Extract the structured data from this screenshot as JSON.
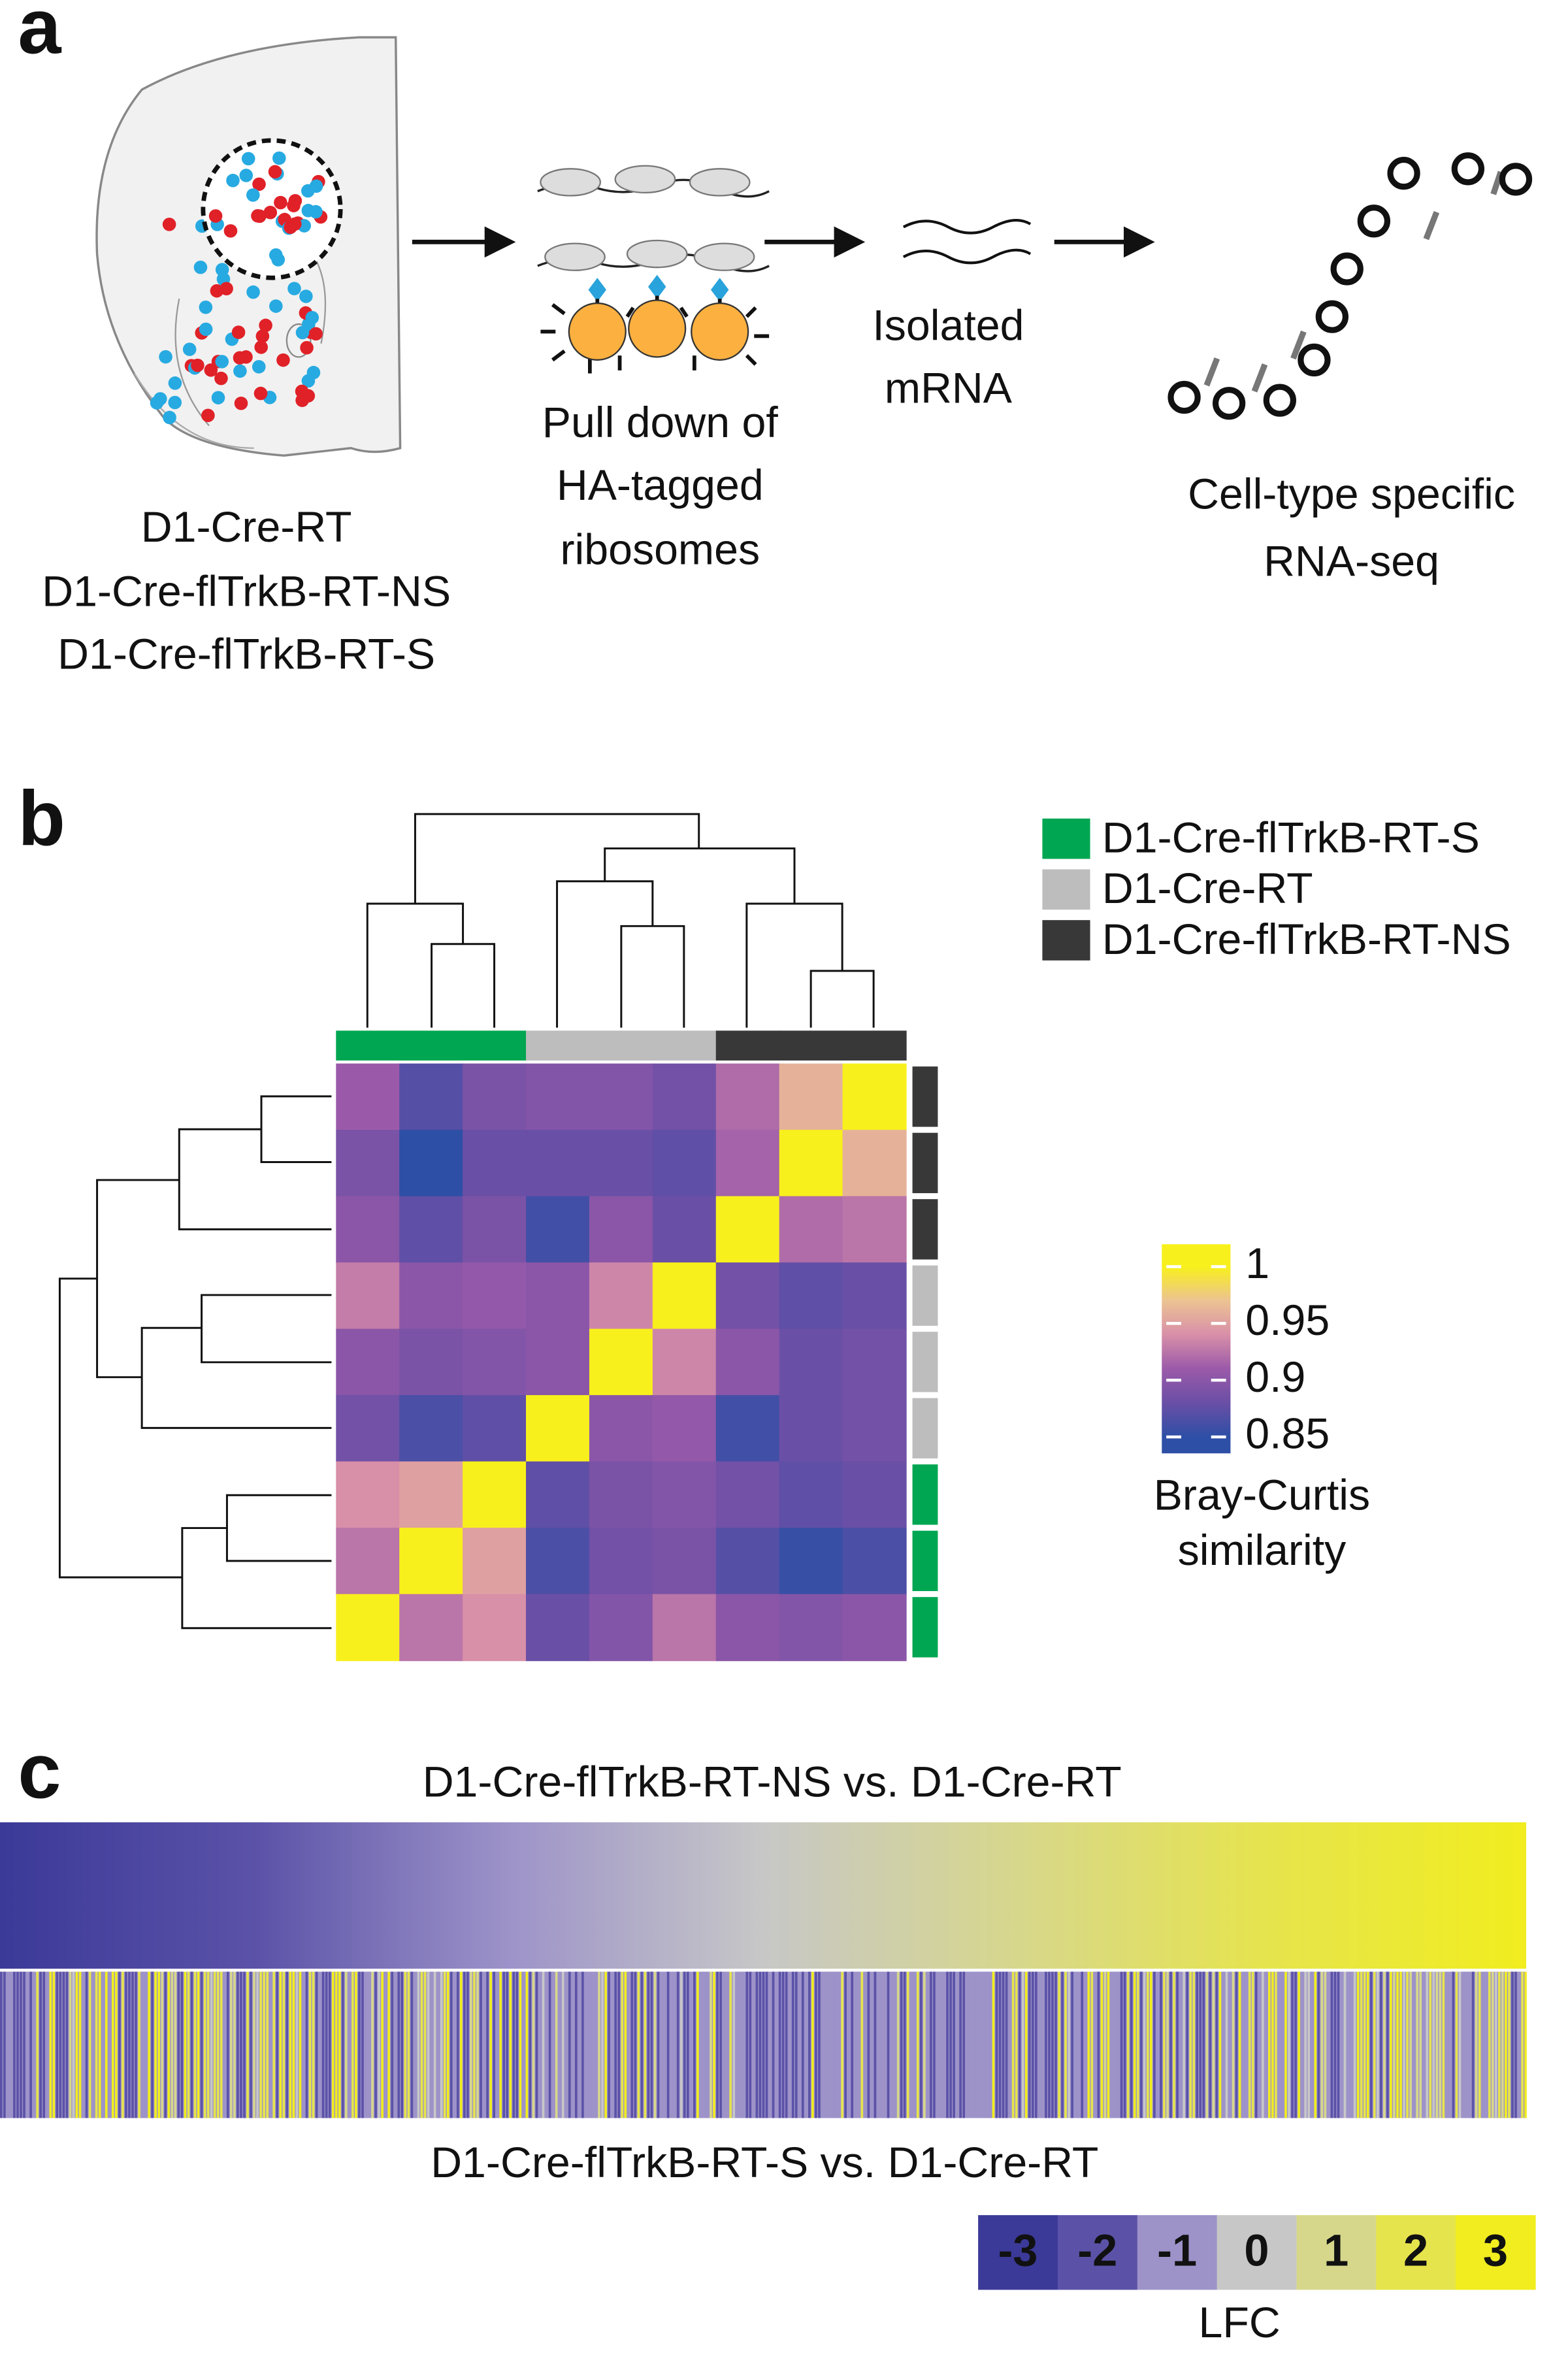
{
  "panel_labels": [
    "a",
    "b",
    "c"
  ],
  "panel_a": {
    "mouse_lines": [
      "D1-Cre-RT",
      "D1-Cre-flTrkB-RT-NS",
      "D1-Cre-flTrkB-RT-S"
    ],
    "steps": [
      [
        "Pull down of",
        "HA-tagged",
        "ribosomes"
      ],
      [
        "Isolated",
        "mRNA"
      ],
      [
        "Cell-type specific",
        "RNA-seq"
      ]
    ]
  },
  "panel_b": {
    "groups": [
      {
        "name": "D1-Cre-flTrkB-RT-S",
        "color": "#00a651"
      },
      {
        "name": "D1-Cre-RT",
        "color": "#bdbdbd"
      },
      {
        "name": "D1-Cre-flTrkB-RT-NS",
        "color": "#383838"
      }
    ],
    "col_groups": [
      0,
      0,
      0,
      1,
      1,
      1,
      2,
      2,
      2
    ],
    "row_groups": [
      2,
      2,
      2,
      1,
      1,
      1,
      0,
      0,
      0
    ],
    "matrix": [
      [
        0.91,
        0.87,
        0.89,
        0.895,
        0.895,
        0.885,
        0.92,
        0.96,
        1
      ],
      [
        0.89,
        0.85,
        0.88,
        0.88,
        0.88,
        0.875,
        0.915,
        1,
        0.96
      ],
      [
        0.9,
        0.875,
        0.89,
        0.86,
        0.9,
        0.88,
        1,
        0.92,
        0.925
      ],
      [
        0.93,
        0.9,
        0.905,
        0.9,
        0.935,
        1,
        0.885,
        0.875,
        0.88
      ],
      [
        0.9,
        0.89,
        0.895,
        0.9,
        1,
        0.935,
        0.9,
        0.88,
        0.885
      ],
      [
        0.885,
        0.865,
        0.875,
        1,
        0.9,
        0.905,
        0.86,
        0.88,
        0.885
      ],
      [
        0.94,
        0.95,
        1,
        0.875,
        0.89,
        0.895,
        0.885,
        0.875,
        0.88
      ],
      [
        0.925,
        1,
        0.95,
        0.865,
        0.885,
        0.89,
        0.87,
        0.855,
        0.865
      ],
      [
        1,
        0.925,
        0.94,
        0.88,
        0.895,
        0.925,
        0.9,
        0.895,
        0.9
      ]
    ],
    "colorbar": {
      "clim": [
        0.85,
        1
      ],
      "ticks": [
        1,
        0.95,
        0.9,
        0.85
      ],
      "colors": [
        "#2e4fa6",
        "#6a4fa6",
        "#9b5aa9",
        "#d88fa8",
        "#ecc392",
        "#f8f01c"
      ],
      "label": [
        "Bray-Curtis",
        "similarity"
      ]
    }
  },
  "panel_c": {
    "top_label": "D1-Cre-flTrkB-RT-NS vs. D1-Cre-RT",
    "bottom_label": "D1-Cre-flTrkB-RT-S vs. D1-Cre-RT",
    "lfc_legend": {
      "values": [
        -3,
        -2,
        -1,
        0,
        1,
        2,
        3
      ],
      "colors": [
        "#3b3a98",
        "#5b52a8",
        "#9d93c9",
        "#c7c7c7",
        "#d7d78c",
        "#e6e44c",
        "#f1ed1f"
      ],
      "label": "LFC"
    }
  }
}
